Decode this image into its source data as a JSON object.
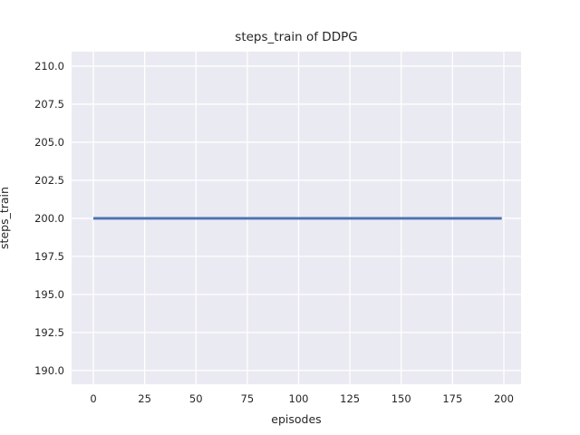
{
  "chart_data": {
    "type": "line",
    "title": "steps_train of DDPG",
    "xlabel": "episodes",
    "ylabel": "steps_train",
    "xlim": [
      -10.6,
      208.4
    ],
    "ylim": [
      189.1,
      210.95
    ],
    "x_ticks": [
      0,
      25,
      50,
      75,
      100,
      125,
      150,
      175,
      200
    ],
    "x_tick_labels": [
      "0",
      "25",
      "50",
      "75",
      "100",
      "125",
      "150",
      "175",
      "200"
    ],
    "y_ticks": [
      190,
      192.5,
      195,
      197.5,
      200,
      202.5,
      205,
      207.5,
      210
    ],
    "y_tick_labels": [
      "190.0",
      "192.5",
      "195.0",
      "197.5",
      "200.0",
      "202.5",
      "205.0",
      "207.5",
      "210.0"
    ],
    "grid": true,
    "legend": "none",
    "plot_background": "#eaeaf2",
    "grid_color": "#ffffff",
    "text_color": "#262626",
    "series": [
      {
        "name": "steps_train",
        "color": "#4c72b0",
        "x": [
          0,
          199
        ],
        "y": [
          200,
          200
        ]
      }
    ]
  }
}
